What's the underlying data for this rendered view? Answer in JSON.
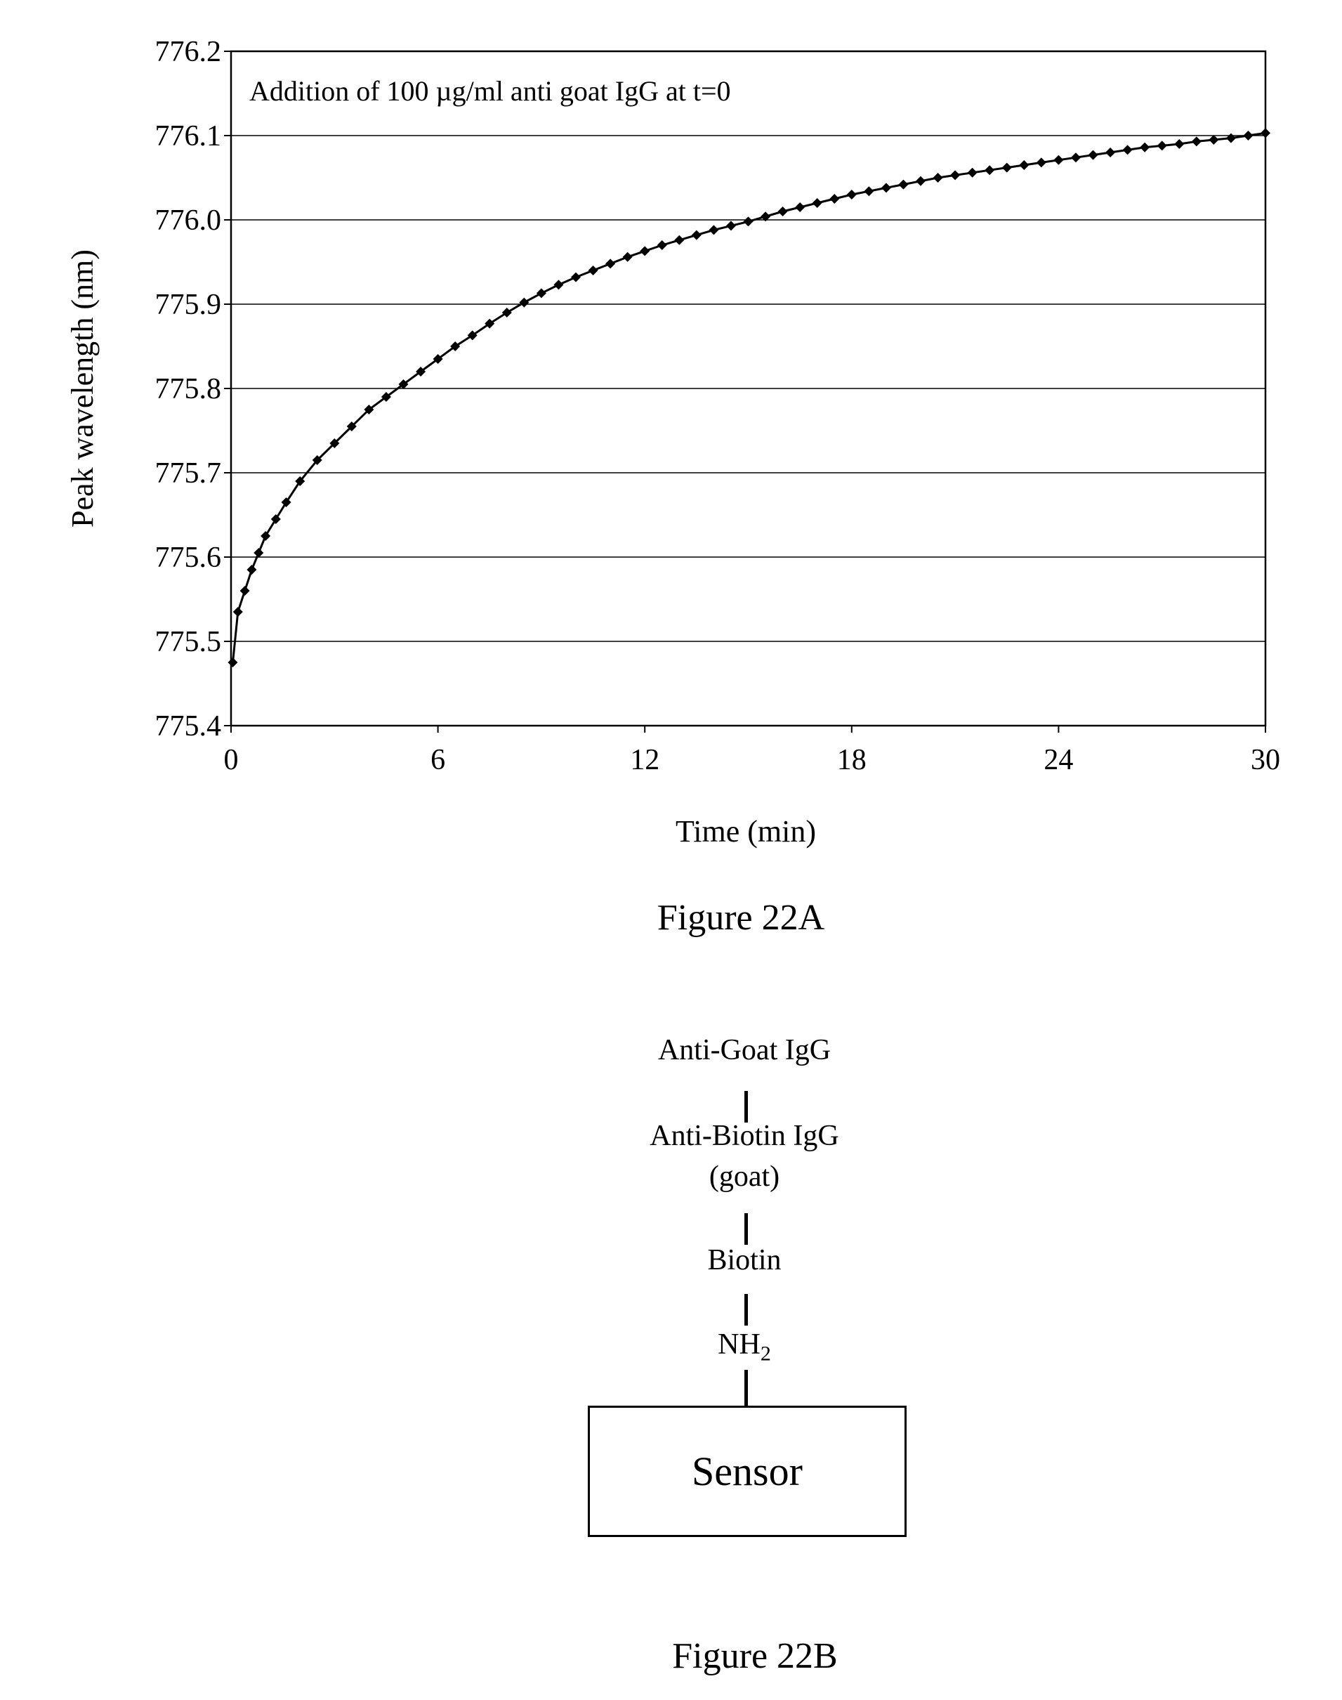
{
  "chart_data": {
    "type": "scatter",
    "xlabel": "Time (min)",
    "ylabel": "Peak wavelength (nm)",
    "xlim": [
      0,
      30
    ],
    "ylim": [
      775.4,
      776.2
    ],
    "xticks": [
      0,
      6,
      12,
      18,
      24,
      30
    ],
    "yticks": [
      "775.4",
      "775.5",
      "775.6",
      "775.7",
      "775.8",
      "775.9",
      "776.0",
      "776.1",
      "776.2"
    ],
    "grid": "horizontal",
    "annotation": "Addition of 100 µg/ml anti goat IgG at t=0",
    "marker_color": "#000000",
    "series": [
      {
        "x": [
          0.05,
          0.2,
          0.4,
          0.6,
          0.8,
          1.0,
          1.3,
          1.6,
          2.0,
          2.5,
          3.0,
          3.5,
          4.0,
          4.5,
          5.0,
          5.5,
          6.0,
          6.5,
          7.0,
          7.5,
          8.0,
          8.5,
          9.0,
          9.5,
          10.0,
          10.5,
          11.0,
          11.5,
          12.0,
          12.5,
          13.0,
          13.5,
          14.0,
          14.5,
          15.0,
          15.5,
          16.0,
          16.5,
          17.0,
          17.5,
          18.0,
          18.5,
          19.0,
          19.5,
          20.0,
          20.5,
          21.0,
          21.5,
          22.0,
          22.5,
          23.0,
          23.5,
          24.0,
          24.5,
          25.0,
          25.5,
          26.0,
          26.5,
          27.0,
          27.5,
          28.0,
          28.5,
          29.0,
          29.5,
          30.0
        ],
        "y": [
          775.475,
          775.535,
          775.56,
          775.585,
          775.605,
          775.625,
          775.645,
          775.665,
          775.69,
          775.715,
          775.735,
          775.755,
          775.775,
          775.79,
          775.805,
          775.82,
          775.835,
          775.85,
          775.863,
          775.877,
          775.89,
          775.902,
          775.913,
          775.923,
          775.932,
          775.94,
          775.948,
          775.956,
          775.963,
          775.97,
          775.976,
          775.982,
          775.988,
          775.993,
          775.998,
          776.004,
          776.01,
          776.015,
          776.02,
          776.025,
          776.03,
          776.034,
          776.038,
          776.042,
          776.046,
          776.05,
          776.053,
          776.056,
          776.059,
          776.062,
          776.065,
          776.068,
          776.071,
          776.074,
          776.077,
          776.08,
          776.083,
          776.086,
          776.088,
          776.09,
          776.093,
          776.095,
          776.097,
          776.1,
          776.103
        ]
      }
    ]
  },
  "captions": {
    "fig_a": "Figure 22A",
    "fig_b": "Figure 22B"
  },
  "diagram": {
    "nodes": [
      "Anti-Goat IgG",
      "Anti-Biotin IgG",
      "(goat)",
      "Biotin",
      "NH",
      "2"
    ],
    "sensor": "Sensor"
  }
}
